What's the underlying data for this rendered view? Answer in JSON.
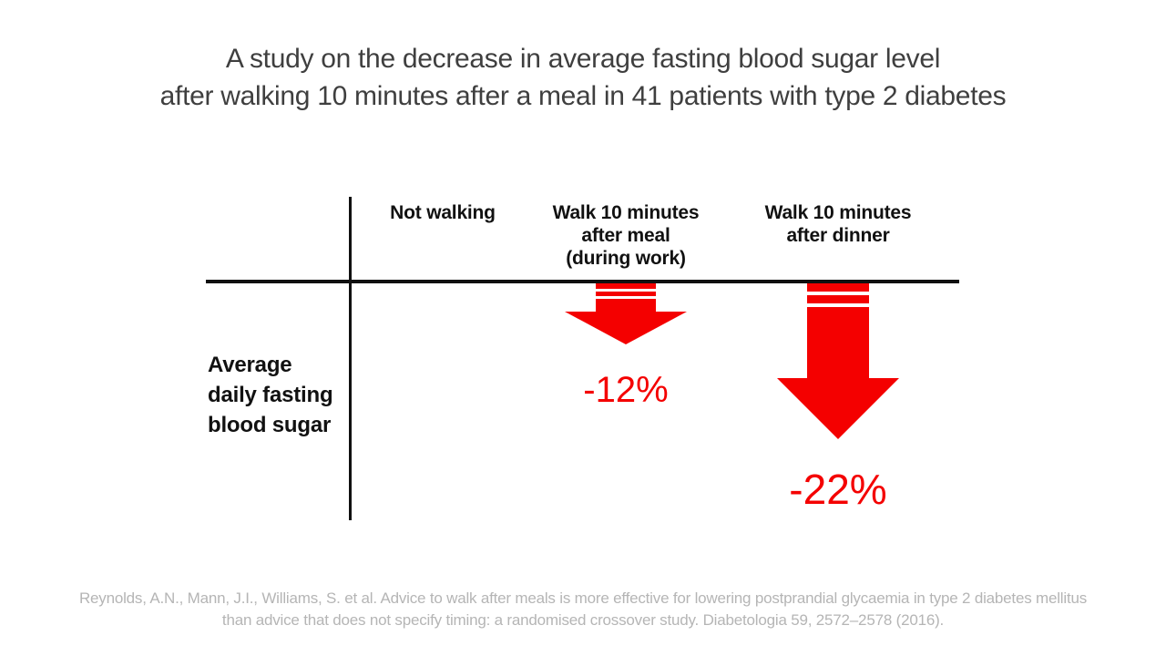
{
  "title": {
    "line1": "A study on the decrease in average fasting blood sugar level",
    "line2": "after walking 10 minutes after a meal in 41 patients with type 2 diabetes"
  },
  "table": {
    "row_label_lines": [
      "Average",
      "daily fasting",
      "blood sugar"
    ],
    "columns": [
      {
        "label_lines": [
          "Not walking"
        ],
        "change": ""
      },
      {
        "label_lines": [
          "Walk 10 minutes",
          "after meal",
          "(during work)"
        ],
        "change": "-12%"
      },
      {
        "label_lines": [
          "Walk 10 minutes",
          "after dinner"
        ],
        "change": "-22%"
      }
    ]
  },
  "citation": {
    "line1": "Reynolds, A.N., Mann, J.I., Williams, S. et al. Advice to walk after meals is more effective for lowering postprandial glycaemia in type 2 diabetes mellitus",
    "line2": "than advice that does not specify timing: a randomised crossover study. Diabetologia 59, 2572–2578 (2016)."
  },
  "colors": {
    "arrow_red": "#F40000",
    "title_gray": "#3F3F3F",
    "text_black": "#111111",
    "citation_gray": "#B5B5B5"
  },
  "chart_data": {
    "type": "bar",
    "categories": [
      "Not walking",
      "Walk 10 minutes after meal (during work)",
      "Walk 10 minutes after dinner"
    ],
    "values": [
      0,
      -12,
      -22
    ],
    "unit": "% change",
    "title": "A study on the decrease in average fasting blood sugar level after walking 10 minutes after a meal in 41 patients with type 2 diabetes",
    "xlabel": "",
    "ylabel": "Average daily fasting blood sugar",
    "annotations": [
      "-12%",
      "-22%"
    ],
    "legend": false,
    "grid": false
  }
}
